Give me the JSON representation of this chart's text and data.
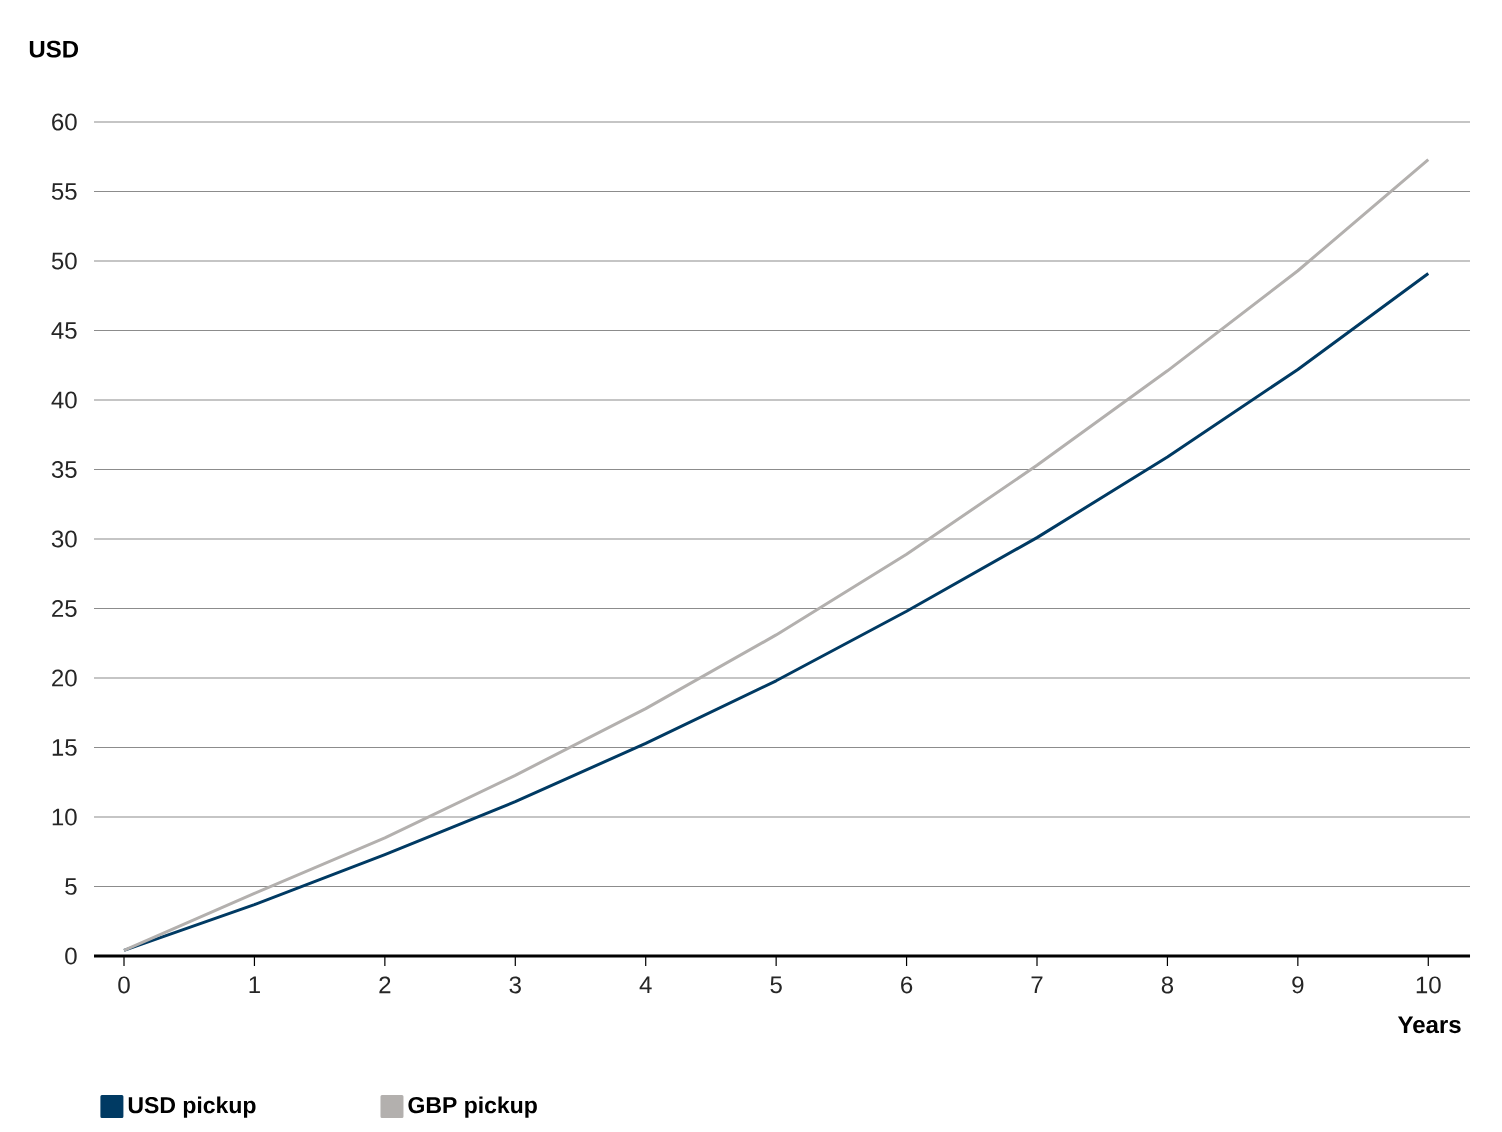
{
  "chart_data": {
    "type": "line",
    "xlabel": "Years",
    "ylabel": "USD",
    "x": [
      0,
      1,
      2,
      3,
      4,
      5,
      6,
      7,
      8,
      9,
      10
    ],
    "series": [
      {
        "name": "USD pickup",
        "color": "#003a63",
        "values": [
          0.4,
          3.7,
          7.3,
          11.1,
          15.3,
          19.8,
          24.8,
          30.1,
          35.9,
          42.2,
          49.1
        ]
      },
      {
        "name": "GBP pickup",
        "color": "#b3b0ae",
        "values": [
          0.4,
          4.5,
          8.5,
          13.0,
          17.8,
          23.1,
          28.9,
          35.3,
          42.1,
          49.3,
          57.3
        ]
      }
    ],
    "xlim": [
      -0.23,
      10.32
    ],
    "ylim": [
      0,
      60
    ],
    "xticks": [
      0,
      1,
      2,
      3,
      4,
      5,
      6,
      7,
      8,
      9,
      10
    ],
    "yticks": [
      0,
      5,
      10,
      15,
      20,
      25,
      30,
      35,
      40,
      45,
      50,
      55,
      60
    ],
    "grid": "y",
    "legend": "bottom left",
    "marker": "none",
    "line_style": "solid"
  }
}
